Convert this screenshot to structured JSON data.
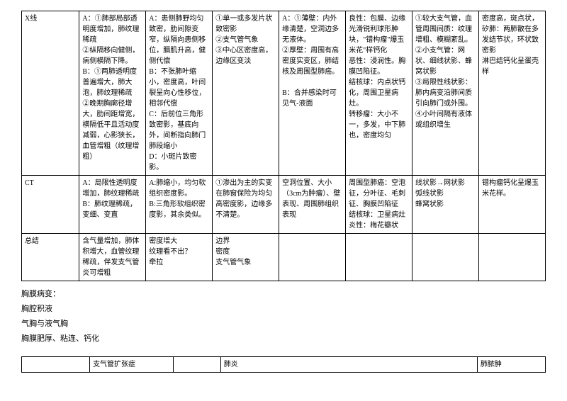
{
  "table1": {
    "rows": [
      {
        "label": "X线",
        "c1": "A：①肺部局部透明度增加，肺纹理稀疏\n②纵隔移向健侧，病侧横隔下降。\nB：①两肺透明度普遍增大，肺大泡，肺纹理稀疏\n②晚期胸廓径增大，肋间距增宽，横隔低平且活动度减弱，心影狭长，血管增粗（纹理增粗）",
        "c2": "A：患侧肺野均匀致密，肋间隙变窄，纵隔向患侧移位，膈肌升高，健侧代偿\nB：不张肺叶缩小，密度高，叶间裂呈向心性移位，相邻代偿\nC：后前位三角形致密影，基底向外，间断指向肺门肺段缩小\nD：小斑片致密影。",
        "c3": "①单一或多发片状致密影\n②支气管气象\n③中心区密度高，边缘区变淡",
        "c4": "A：①薄壁：内外缘清楚，空洞边多无液体。\n②厚壁：周围有高密度实变区，肺结核及周围型肺癌。\n\nB：合并感染时可见气-液面",
        "c5": "良性：包膜、边缘光滑锐利球形肿块，\"错构瘤\"爆玉米花\"样钙化\n恶性：浸润性。胸膜凹陷征。\n结核球：内点状钙化，周围卫星病灶。\n转移瘤：大小不一，多发，中下肺也，密度均匀",
        "c6": "①较大支气管，血管周围间质：纹理增粗、模糊紊乱。\n②小支气管：网状、细线状影、蜂窝状影\n③局限性线状影：肺内病变沿肺间质引向肺门或外围。\n④小叶间隔有液体或组织增生",
        "c7": "密度高，斑点状，矽肺：两肺散在多发结节状，环状致密影\n淋巴结钙化呈蛋壳样"
      },
      {
        "label": "CT",
        "c1": "A：局限性透明度增加，肺纹理稀疏\nB：肺纹理稀疏，变细、变直",
        "c2": "A:肺缩小，均匀软组织密度影。\nB:三角形软组织密度影，其余类似。",
        "c3": "①渗出为主的实变在肺窗保险为均匀高密度影，边缘多不清楚。",
        "c4": "空洞位置、大小（3cm为肿瘤）、壁表现、周围肺组织表现",
        "c5": "周围型肺癌：空泡征，分叶征、毛刺征、胸膜凹陷征\n结核球：卫星病灶\n炎性：梅花瓣状",
        "c6": "线状影→网状影\n弧线状影\n蜂窝状影",
        "c7": "错构瘤钙化呈爆玉米花样。"
      },
      {
        "label": "总结",
        "c1": "含气量增加，肺体积增大，血管纹理稀疏，伴发支气管炎可增粗",
        "c2": "密度增大\n纹理看不出？\n牵拉",
        "c3": "边界\n密度\n支气管气象",
        "c4": "",
        "c5": "",
        "c6": "",
        "c7": ""
      }
    ]
  },
  "notes": {
    "line1": "胸膜病变：",
    "line2": "胸腔积液",
    "line3": "气胸与液气胸",
    "line4": "胸膜肥厚、粘连、钙化"
  },
  "table2": {
    "c1": "",
    "c2": "支气管扩张症",
    "c3": "",
    "c4": "肺炎",
    "c5": "肺脓肿"
  }
}
